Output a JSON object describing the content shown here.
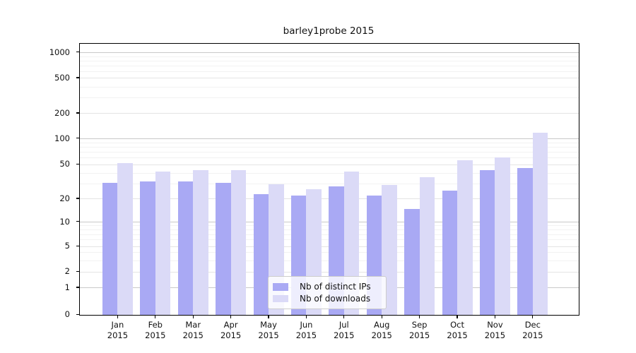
{
  "chart_data": {
    "type": "bar",
    "title": "barley1probe 2015",
    "categories": [
      "Jan",
      "Feb",
      "Mar",
      "Apr",
      "May",
      "Jun",
      "Jul",
      "Aug",
      "Sep",
      "Oct",
      "Nov",
      "Dec"
    ],
    "year_label": "2015",
    "series": [
      {
        "name": "Nb of distinct IPs",
        "color": "#a9a9f4",
        "values": [
          31,
          32,
          32,
          31,
          23,
          22,
          28,
          22,
          15,
          25,
          43,
          46
        ]
      },
      {
        "name": "Nb of downloads",
        "color": "#dbdaf7",
        "values": [
          52,
          42,
          43,
          43,
          30,
          26,
          42,
          29,
          36,
          56,
          61,
          118
        ]
      }
    ],
    "yscale": "symlog",
    "ylim": [
      0,
      1200
    ],
    "y_tick_labels": [
      "0",
      "1",
      "2",
      "5",
      "10",
      "20",
      "50",
      "100",
      "200",
      "500",
      "1000"
    ],
    "grid": "on",
    "legend_position": "lower-center-inside"
  },
  "axis": {
    "anchors": [
      [
        0,
        0
      ],
      [
        1,
        0.099
      ],
      [
        2,
        0.1576
      ],
      [
        5,
        0.2526
      ],
      [
        10,
        0.3424
      ],
      [
        20,
        0.4271
      ],
      [
        50,
        0.5534
      ],
      [
        100,
        0.6497
      ],
      [
        200,
        0.7422
      ],
      [
        500,
        0.8724
      ],
      [
        1000,
        0.9674
      ]
    ],
    "minor_ticks": [
      3,
      4,
      6,
      7,
      8,
      9,
      30,
      40,
      60,
      70,
      80,
      90,
      300,
      400,
      600,
      700,
      800,
      900
    ],
    "decade_ticks": [
      1,
      10,
      100,
      1000
    ]
  },
  "colors": {
    "background": "#ffffff",
    "bar_ips": "#a9a9f4",
    "bar_downloads": "#dbdaf7",
    "grid_decade": "#c9c9c9",
    "grid_labeled": "#e4e4e4",
    "grid_minor": "#f2f2f2",
    "spine": "#000000",
    "legend_border": "#cccccc",
    "text": "#111111"
  }
}
